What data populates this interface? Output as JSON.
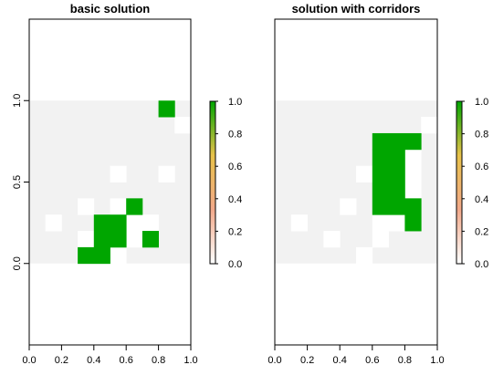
{
  "chart_data": [
    {
      "type": "heatmap",
      "title": "basic solution",
      "xlabel": "",
      "ylabel": "",
      "xlim": [
        0,
        1
      ],
      "ylim": [
        -0.5,
        1.5
      ],
      "x_ticks": [
        "0.0",
        "0.2",
        "0.4",
        "0.6",
        "0.8",
        "1.0"
      ],
      "y_ticks": [
        "0.0",
        "0.5",
        "1.0"
      ],
      "grid": "10x10 cells covering x 0-1, y 0-1",
      "cells": [
        {
          "value": 0,
          "x": [
            0.1,
            0.2
          ],
          "y": [
            0.2,
            0.3
          ]
        },
        {
          "value": 0,
          "x": [
            0.3,
            0.4
          ],
          "y": [
            0.3,
            0.4
          ]
        },
        {
          "value": 0,
          "x": [
            0.3,
            0.4
          ],
          "y": [
            0.1,
            0.2
          ]
        },
        {
          "value": 0,
          "x": [
            0.5,
            0.6
          ],
          "y": [
            0.5,
            0.6
          ]
        },
        {
          "value": 0,
          "x": [
            0.5,
            0.6
          ],
          "y": [
            0.3,
            0.4
          ]
        },
        {
          "value": 0,
          "x": [
            0.5,
            0.6
          ],
          "y": [
            0.0,
            0.1
          ]
        },
        {
          "value": 0,
          "x": [
            0.6,
            0.7
          ],
          "y": [
            0.2,
            0.3
          ]
        },
        {
          "value": 0,
          "x": [
            0.6,
            0.7
          ],
          "y": [
            0.1,
            0.2
          ]
        },
        {
          "value": 0,
          "x": [
            0.7,
            0.8
          ],
          "y": [
            0.2,
            0.3
          ]
        },
        {
          "value": 0,
          "x": [
            0.8,
            0.9
          ],
          "y": [
            0.5,
            0.6
          ]
        },
        {
          "value": 0,
          "x": [
            0.9,
            1.0
          ],
          "y": [
            0.8,
            0.9
          ]
        },
        {
          "value": 1,
          "x": [
            0.8,
            0.9
          ],
          "y": [
            0.9,
            1.0
          ]
        },
        {
          "value": 1,
          "x": [
            0.6,
            0.7
          ],
          "y": [
            0.3,
            0.4
          ]
        },
        {
          "value": 1,
          "x": [
            0.4,
            0.6
          ],
          "y": [
            0.1,
            0.3
          ]
        },
        {
          "value": 1,
          "x": [
            0.3,
            0.5
          ],
          "y": [
            0.0,
            0.1
          ]
        },
        {
          "value": 1,
          "x": [
            0.7,
            0.8
          ],
          "y": [
            0.1,
            0.2
          ]
        }
      ]
    },
    {
      "type": "heatmap",
      "title": "solution with corridors",
      "xlabel": "",
      "ylabel": "",
      "xlim": [
        0,
        1
      ],
      "ylim": [
        -0.5,
        1.5
      ],
      "x_ticks": [
        "0.0",
        "0.2",
        "0.4",
        "0.6",
        "0.8",
        "1.0"
      ],
      "y_ticks": [],
      "grid": "10x10 cells covering x 0-1, y 0-1",
      "cells": [
        {
          "value": 0,
          "x": [
            0.1,
            0.2
          ],
          "y": [
            0.2,
            0.3
          ]
        },
        {
          "value": 0,
          "x": [
            0.3,
            0.4
          ],
          "y": [
            0.1,
            0.2
          ]
        },
        {
          "value": 0,
          "x": [
            0.4,
            0.5
          ],
          "y": [
            0.3,
            0.4
          ]
        },
        {
          "value": 0,
          "x": [
            0.5,
            0.6
          ],
          "y": [
            0.5,
            0.6
          ]
        },
        {
          "value": 0,
          "x": [
            0.5,
            0.6
          ],
          "y": [
            0.0,
            0.1
          ]
        },
        {
          "value": 0,
          "x": [
            0.6,
            0.7
          ],
          "y": [
            0.1,
            0.3
          ]
        },
        {
          "value": 0,
          "x": [
            0.7,
            0.8
          ],
          "y": [
            0.2,
            0.3
          ]
        },
        {
          "value": 0,
          "x": [
            0.8,
            0.9
          ],
          "y": [
            0.6,
            0.7
          ]
        },
        {
          "value": 0,
          "x": [
            0.8,
            0.9
          ],
          "y": [
            0.4,
            0.6
          ]
        },
        {
          "value": 0,
          "x": [
            0.9,
            1.0
          ],
          "y": [
            0.8,
            0.9
          ]
        },
        {
          "value": 1,
          "x": [
            0.6,
            0.9
          ],
          "y": [
            0.7,
            0.8
          ]
        },
        {
          "value": 1,
          "x": [
            0.6,
            0.8
          ],
          "y": [
            0.3,
            0.7
          ]
        },
        {
          "value": 1,
          "x": [
            0.8,
            0.9
          ],
          "y": [
            0.2,
            0.4
          ]
        }
      ]
    }
  ],
  "legend": {
    "ticks": [
      "0.0",
      "0.2",
      "0.4",
      "0.6",
      "0.8",
      "1.0"
    ],
    "range": [
      0,
      1
    ],
    "colors": [
      "#ffffff",
      "#f2a98a",
      "#e8c24a",
      "#00a600"
    ]
  },
  "colors": {
    "background": "#f2f2f2",
    "zero_cell": "#ffffff",
    "one_cell": "#00a600",
    "axis": "#000000"
  }
}
